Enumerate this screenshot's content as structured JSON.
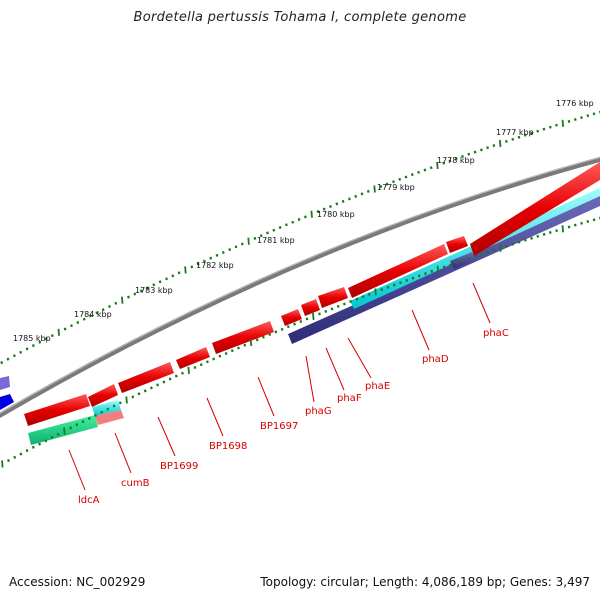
{
  "title": "Bordetella pertussis Tohama I, complete genome",
  "accession": "Accession: NC_002929",
  "summary": "Topology: circular; Length: 4,086,189 bp; Genes: 3,497",
  "kbp_labels": [
    "1776 kbp",
    "1777 kbp",
    "1778 kbp",
    "1779 kbp",
    "1780 kbp",
    "1781 kbp",
    "1782 kbp",
    "1783 kbp",
    "1784 kbp",
    "1785 kbp"
  ],
  "gene_labels": [
    "ldcA",
    "cumB",
    "BP1699",
    "BP1698",
    "BP1697",
    "phaG",
    "phaF",
    "phaE",
    "phaD",
    "phaC"
  ],
  "colors": {
    "backbone": "#808080",
    "gene_red": "#e60000",
    "cyan": "#00e6e6",
    "navy": "#3c3c8c",
    "green": "#20c080",
    "tick": "#1a7a1a",
    "label": "#d40000"
  }
}
